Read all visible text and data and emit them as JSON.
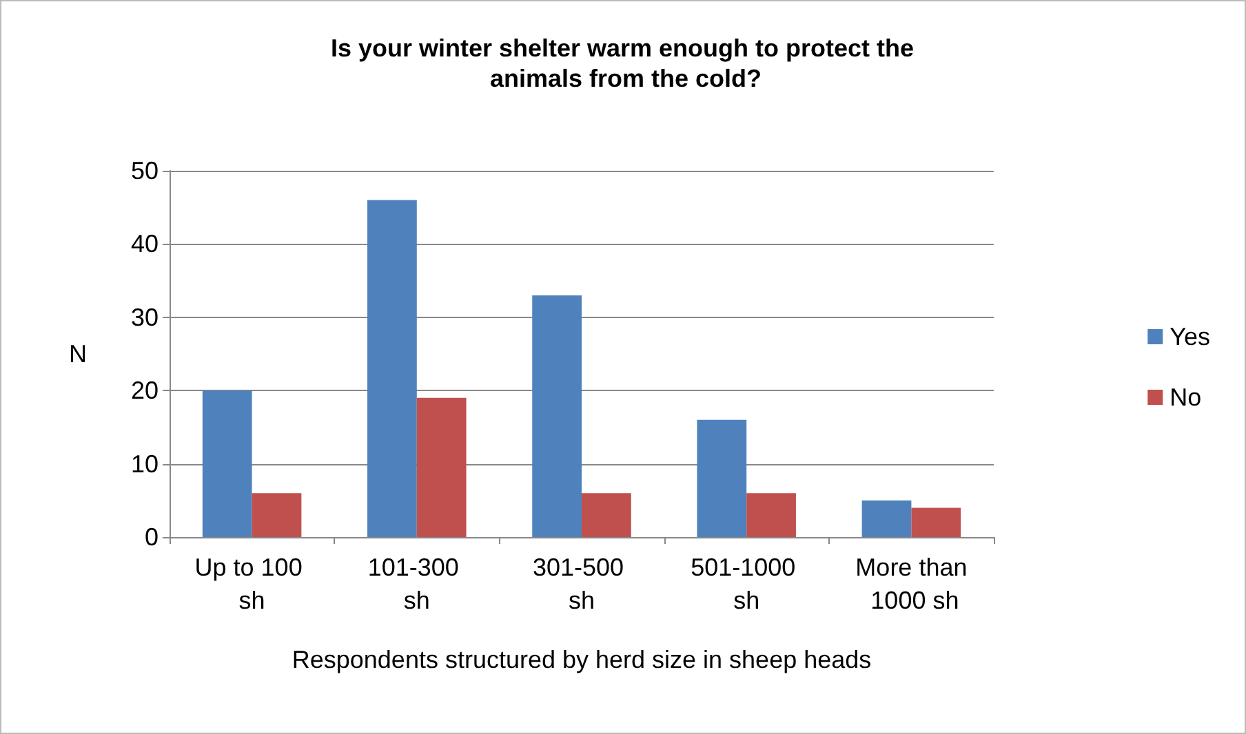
{
  "chart_data": {
    "type": "bar",
    "title": "Is your winter shelter warm enough to protect the animals from the cold?",
    "xlabel": "Respondents structured by herd size in sheep heads",
    "ylabel": "N",
    "categories": [
      "Up to 100 sh",
      "101-300 sh",
      "301-500 sh",
      "501-1000 sh",
      "More than 1000 sh"
    ],
    "series": [
      {
        "name": "Yes",
        "color": "#4f81bd",
        "values": [
          20,
          46,
          33,
          16,
          5
        ]
      },
      {
        "name": "No",
        "color": "#c0504d",
        "values": [
          6,
          19,
          6,
          6,
          4
        ]
      }
    ],
    "ylim": [
      0,
      50
    ],
    "yticks": [
      0,
      10,
      20,
      30,
      40,
      50
    ],
    "grid": "y",
    "legend": "right"
  }
}
